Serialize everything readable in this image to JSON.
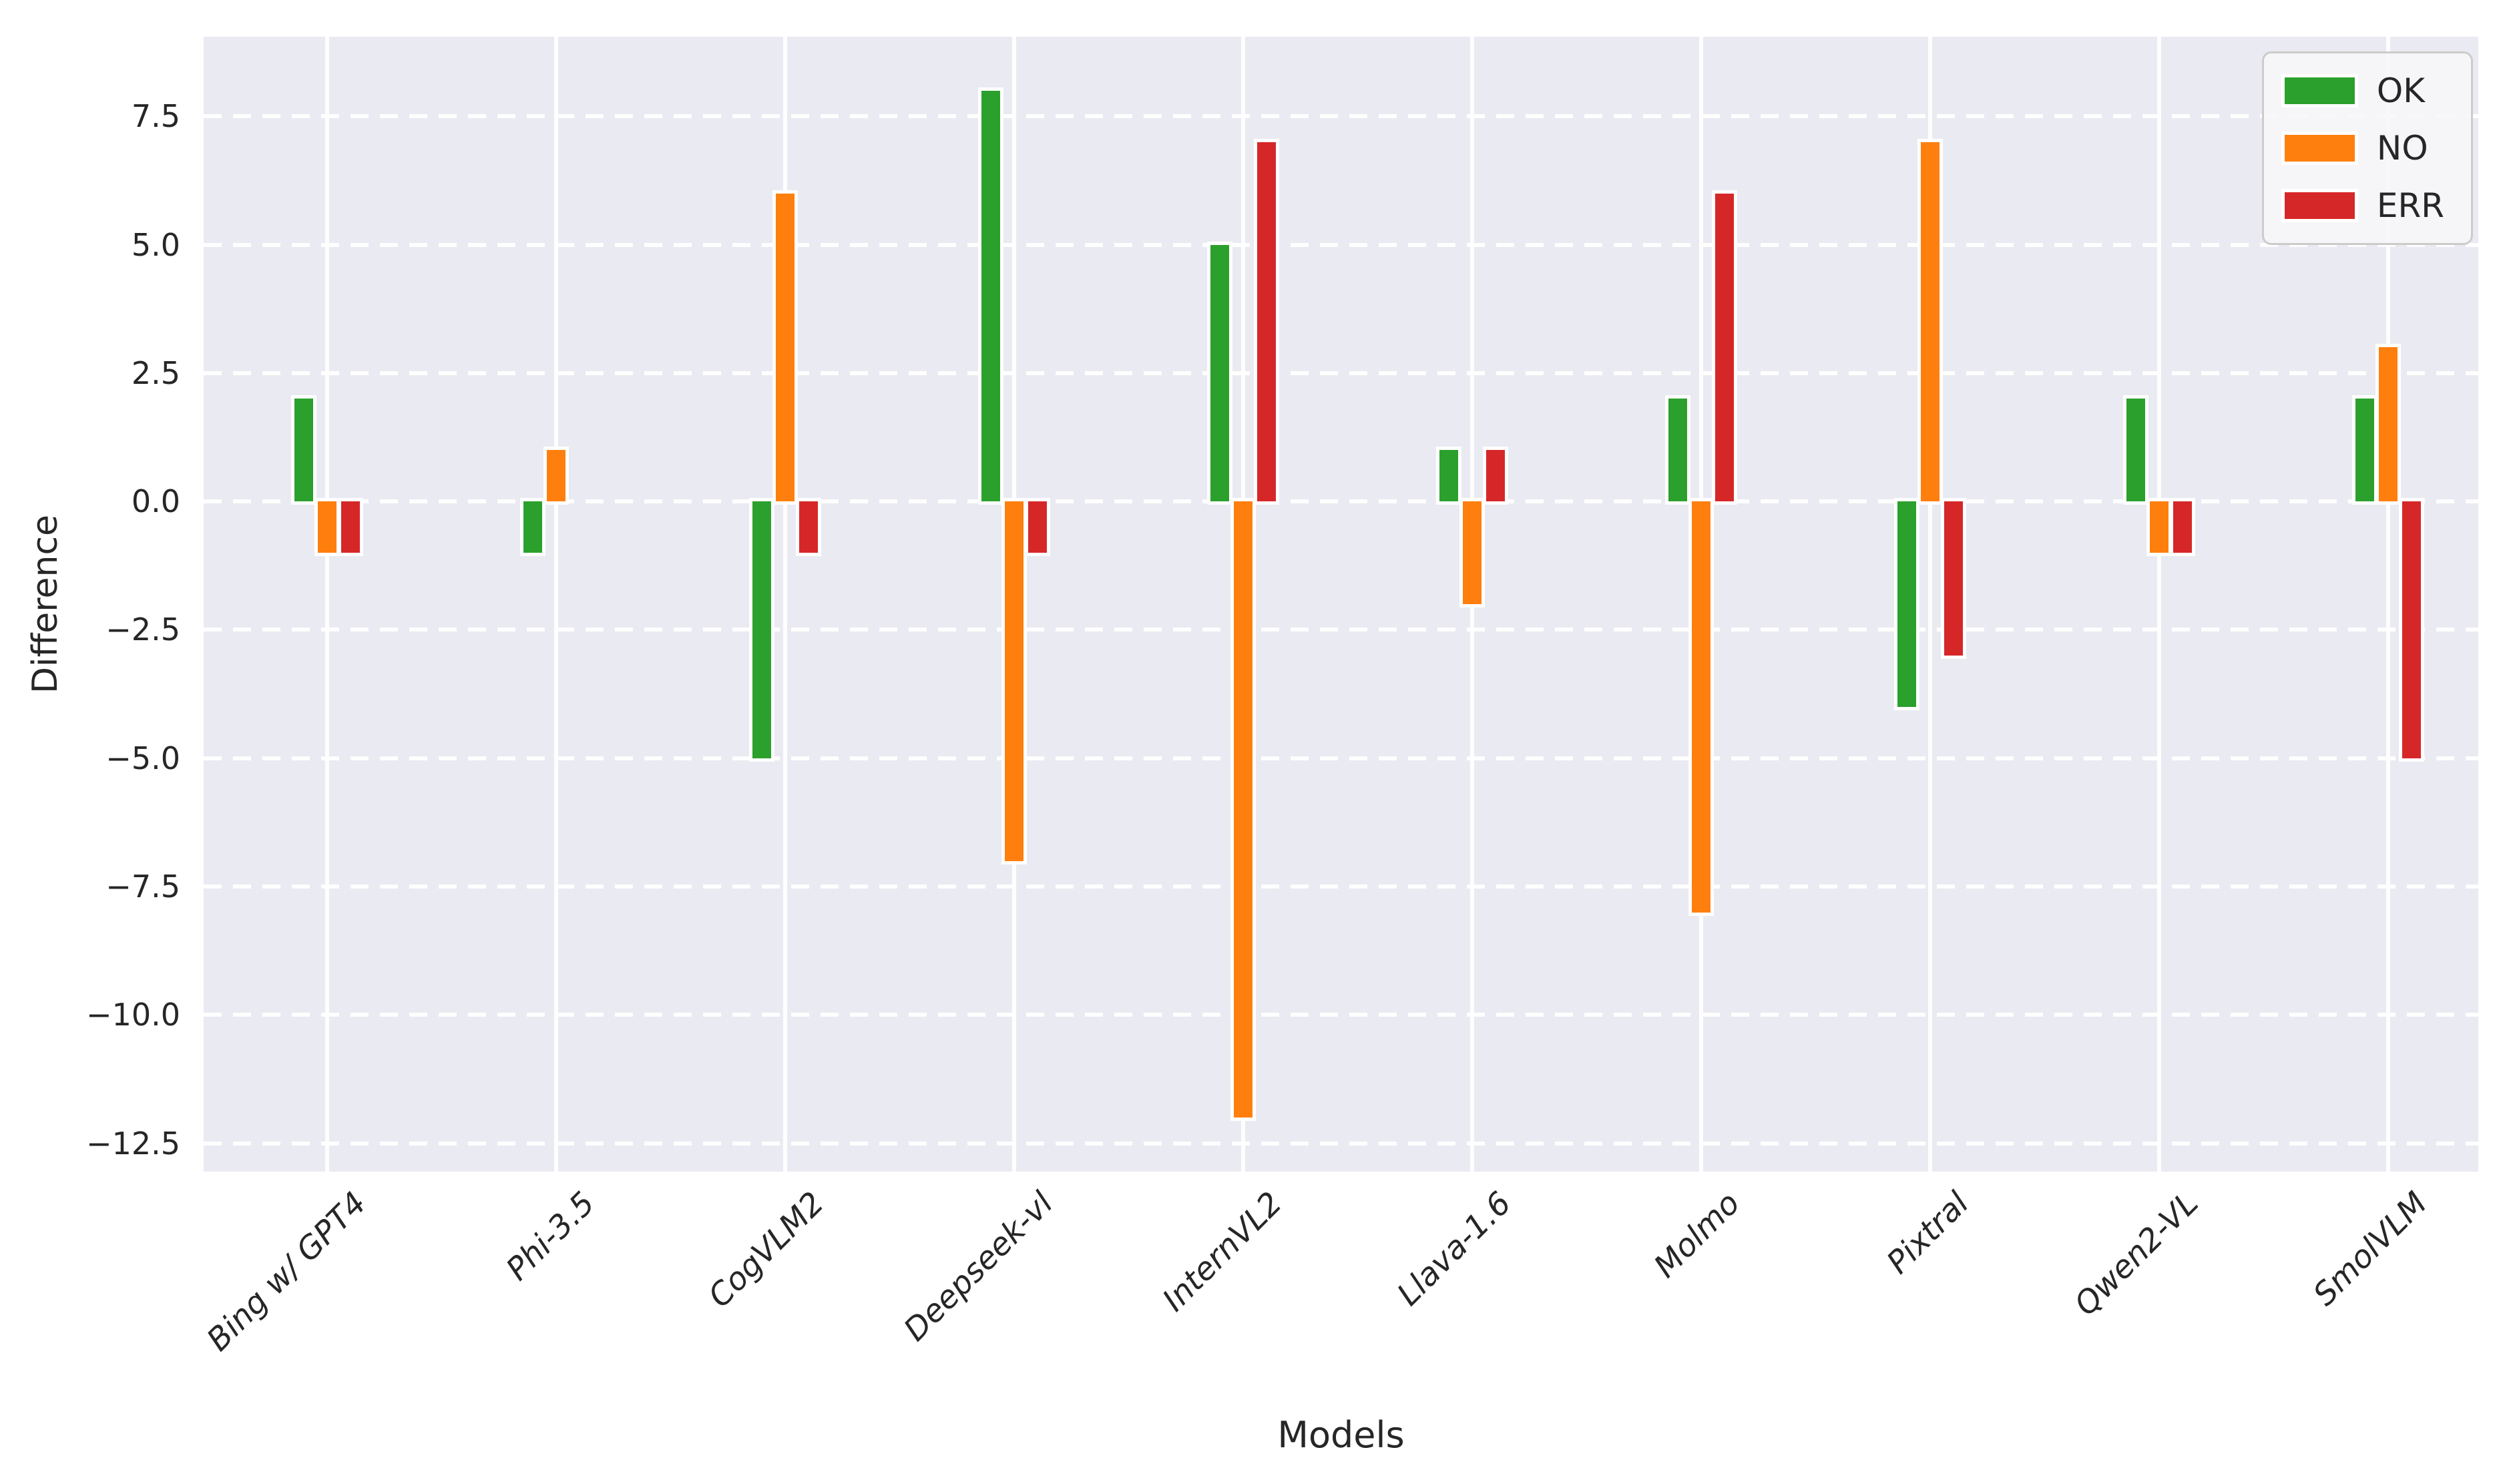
{
  "chart_data": {
    "type": "bar",
    "title": "",
    "xlabel": "Models",
    "ylabel": "Difference",
    "categories": [
      "Bing w/ GPT4",
      "Phi-3.5",
      "CogVLM2",
      "Deepseek-vl",
      "InternVL2",
      "Llava-1.6",
      "Molmo",
      "Pixtral",
      "Qwen2-VL",
      "SmolVLM"
    ],
    "series": [
      {
        "name": "OK",
        "color": "#2ca02c",
        "values": [
          2,
          -1,
          -5,
          8,
          5,
          1,
          2,
          -4,
          2,
          2
        ]
      },
      {
        "name": "NO",
        "color": "#ff7f0e",
        "values": [
          -1,
          1,
          6,
          -7,
          -12,
          -2,
          -8,
          7,
          -1,
          3
        ]
      },
      {
        "name": "ERR",
        "color": "#d62728",
        "values": [
          -1,
          0,
          -1,
          -1,
          7,
          1,
          6,
          -3,
          -1,
          -5
        ]
      }
    ],
    "yticks": [
      7.5,
      5.0,
      2.5,
      0.0,
      -2.5,
      -5.0,
      -7.5,
      -10.0,
      -12.5
    ],
    "ylim": [
      -13.05,
      9.05
    ],
    "grid": true,
    "legend_position": "upper right",
    "plot_bg": "#eaeaf2",
    "grid_color": "#ffffff",
    "text_color": "#262626"
  }
}
